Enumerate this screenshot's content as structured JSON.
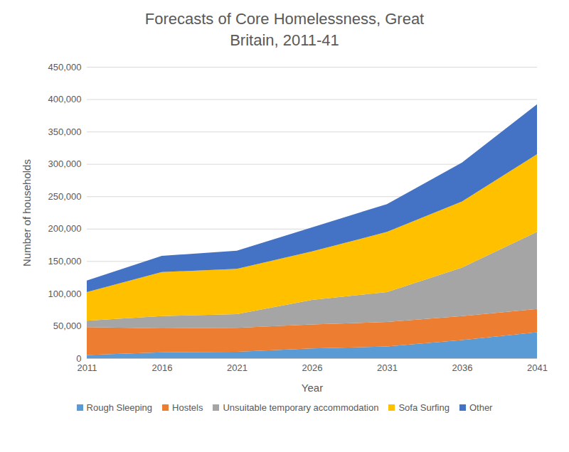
{
  "chart_data": {
    "type": "area",
    "stacked": true,
    "title": "Forecasts of Core Homelessness,  Great Britain, 2011-41",
    "x_label": "Year",
    "y_label": "Number of households",
    "x": [
      2011,
      2016,
      2021,
      2026,
      2031,
      2036,
      2041
    ],
    "series": [
      {
        "name": "Rough Sleeping",
        "color": "#5B9BD5",
        "values": [
          5000,
          9000,
          10000,
          15000,
          18000,
          28000,
          40000
        ]
      },
      {
        "name": "Hostels",
        "color": "#ED7D31",
        "values": [
          43000,
          37000,
          37000,
          37000,
          38000,
          37000,
          36000
        ]
      },
      {
        "name": "Unsuitable temporary accommodation",
        "color": "#A5A5A5",
        "values": [
          10000,
          19000,
          21000,
          38000,
          46000,
          75000,
          119000
        ]
      },
      {
        "name": "Sofa Surfing",
        "color": "#FFC000",
        "values": [
          44000,
          68000,
          70000,
          75000,
          93000,
          102000,
          120000
        ]
      },
      {
        "name": "Other",
        "color": "#4472C4",
        "values": [
          18000,
          25000,
          28000,
          37000,
          43000,
          60000,
          77000
        ]
      }
    ],
    "xlim": [
      2011,
      2041
    ],
    "xticks": [
      2011,
      2016,
      2021,
      2026,
      2031,
      2036,
      2041
    ],
    "ylim": [
      0,
      450000
    ],
    "yticks": [
      0,
      {
        "value": 50000,
        "label": "50,000"
      },
      {
        "value": 100000,
        "label": "100,000"
      },
      {
        "value": 150000,
        "label": "150,000"
      },
      {
        "value": 200000,
        "label": "200,000"
      },
      {
        "value": 250000,
        "label": "250,000"
      },
      {
        "value": 300000,
        "label": "300,000"
      },
      {
        "value": 350000,
        "label": "350,000"
      },
      {
        "value": 400000,
        "label": "400,000"
      },
      {
        "value": 450000,
        "label": "450,000"
      }
    ],
    "grid": true,
    "legend": "bottom"
  }
}
